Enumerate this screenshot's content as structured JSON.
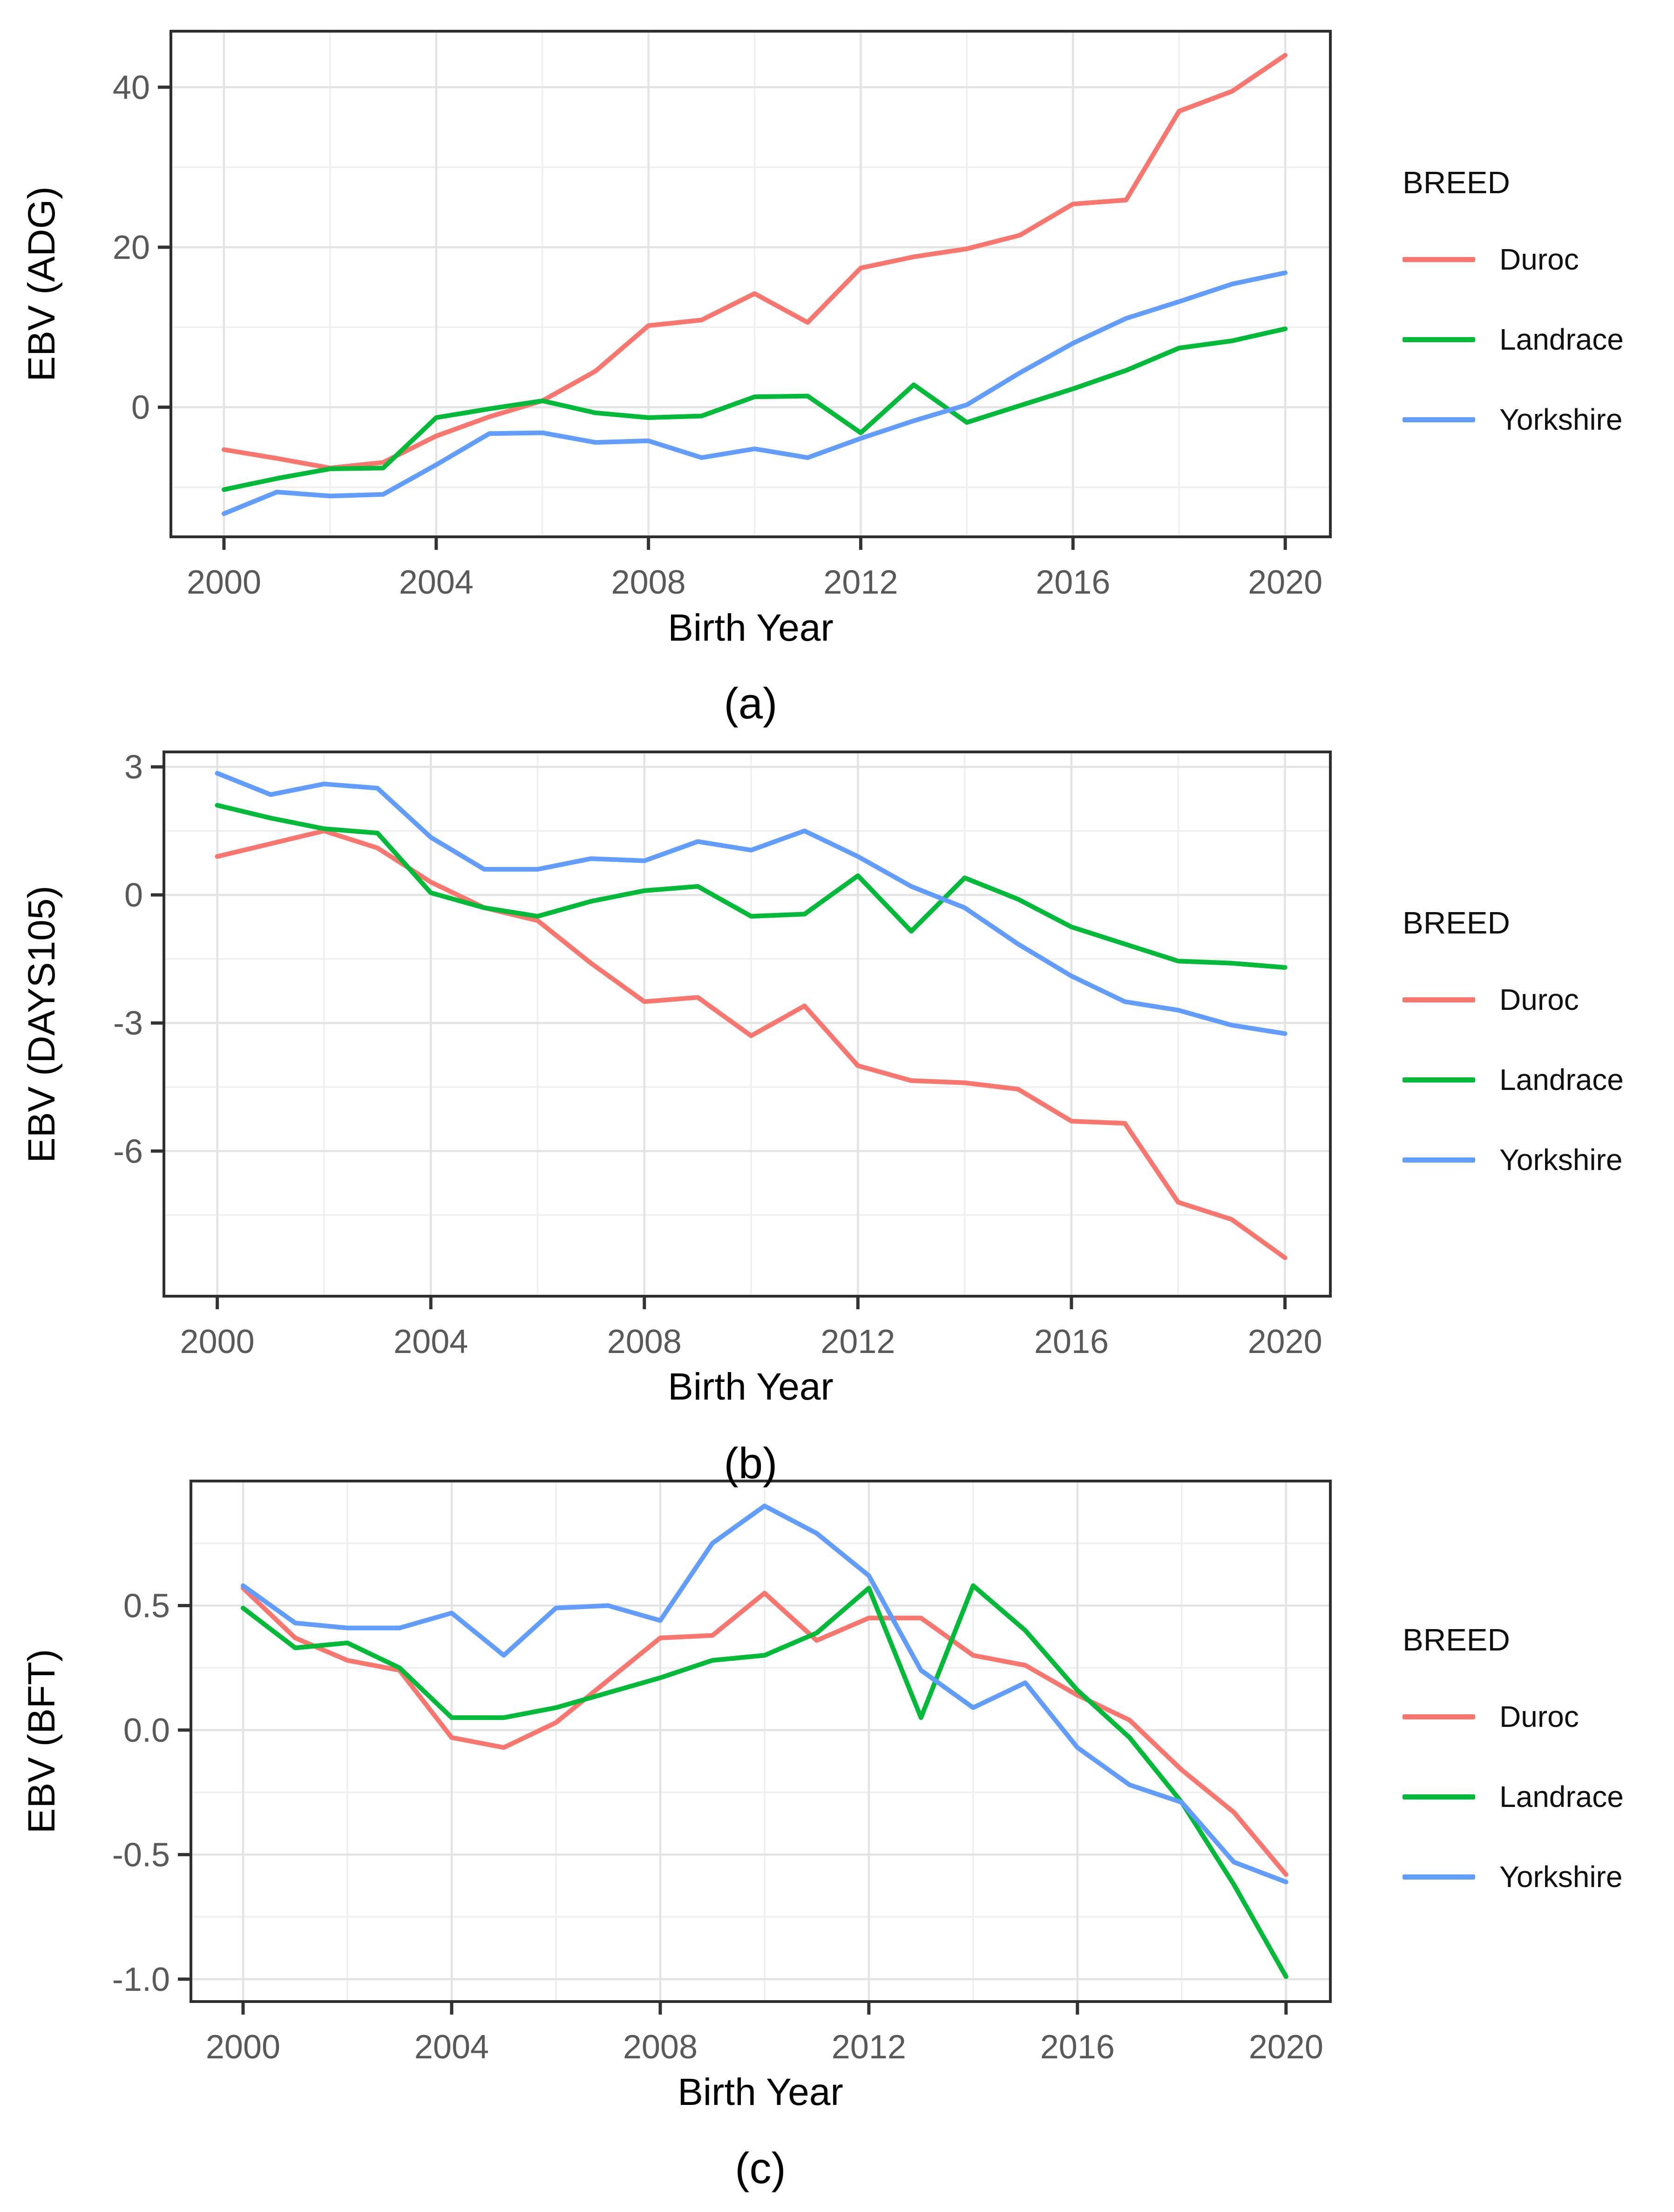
{
  "figure": {
    "background": "#ffffff"
  },
  "legend": {
    "title": "BREED",
    "items": [
      {
        "label": "Duroc",
        "color": "#F8766D"
      },
      {
        "label": "Landrace",
        "color": "#00BA38"
      },
      {
        "label": "Yorkshire",
        "color": "#619CFF"
      }
    ]
  },
  "style": {
    "grid_major_color": "#e3e3e3",
    "grid_minor_color": "#efefef",
    "panel_border_color": "#2f2f2f",
    "tick_color": "#333333",
    "tick_label_color": "#595959",
    "line_width": 10
  },
  "chart_data": [
    {
      "id": "a",
      "type": "line",
      "caption": "(a)",
      "xlabel": "Birth Year",
      "ylabel": "EBV (ADG)",
      "legend_position": "right",
      "grid": true,
      "x": [
        2000,
        2001,
        2002,
        2003,
        2004,
        2005,
        2006,
        2007,
        2008,
        2009,
        2010,
        2011,
        2012,
        2013,
        2014,
        2015,
        2016,
        2017,
        2018,
        2019,
        2020
      ],
      "series": [
        {
          "name": "Duroc",
          "color": "#F8766D",
          "values": [
            -5.3,
            -6.4,
            -7.6,
            -6.9,
            -3.6,
            -1.2,
            0.8,
            4.5,
            10.2,
            10.9,
            14.2,
            10.6,
            17.4,
            18.8,
            19.8,
            21.5,
            25.4,
            25.9,
            37.0,
            39.5,
            44.0
          ]
        },
        {
          "name": "Landrace",
          "color": "#00BA38",
          "values": [
            -10.3,
            -8.9,
            -7.7,
            -7.6,
            -1.3,
            -0.2,
            0.8,
            -0.7,
            -1.3,
            -1.1,
            1.3,
            1.4,
            -3.2,
            2.8,
            -1.9,
            0.2,
            2.3,
            4.6,
            7.4,
            8.3,
            9.8
          ]
        },
        {
          "name": "Yorkshire",
          "color": "#619CFF",
          "values": [
            -13.3,
            -10.6,
            -11.1,
            -10.9,
            -7.2,
            -3.3,
            -3.2,
            -4.4,
            -4.2,
            -6.3,
            -5.2,
            -6.3,
            -3.9,
            -1.7,
            0.3,
            4.3,
            8.0,
            11.1,
            13.2,
            15.4,
            16.8
          ]
        }
      ],
      "xlim": [
        1999.0,
        2020.85
      ],
      "ylim": [
        -16.2,
        47.0
      ],
      "x_ticks": [
        {
          "v": 2000,
          "label": "2000"
        },
        {
          "v": 2004,
          "label": "2004"
        },
        {
          "v": 2008,
          "label": "2008"
        },
        {
          "v": 2012,
          "label": "2012"
        },
        {
          "v": 2016,
          "label": "2016"
        },
        {
          "v": 2020,
          "label": "2020"
        }
      ],
      "x_minor": [
        2002,
        2006,
        2010,
        2014,
        2018
      ],
      "y_ticks": [
        {
          "v": 40,
          "label": "40"
        },
        {
          "v": 20,
          "label": "20"
        },
        {
          "v": 0,
          "label": "0"
        }
      ],
      "y_minor": [
        30,
        10,
        -10
      ]
    },
    {
      "id": "b",
      "type": "line",
      "caption": "(b)",
      "xlabel": "Birth Year",
      "ylabel": "EBV (DAYS105)",
      "legend_position": "right",
      "grid": true,
      "x": [
        2000,
        2001,
        2002,
        2003,
        2004,
        2005,
        2006,
        2007,
        2008,
        2009,
        2010,
        2011,
        2012,
        2013,
        2014,
        2015,
        2016,
        2017,
        2018,
        2019,
        2020
      ],
      "series": [
        {
          "name": "Duroc",
          "color": "#F8766D",
          "values": [
            0.9,
            1.2,
            1.5,
            1.1,
            0.3,
            -0.3,
            -0.6,
            -1.6,
            -2.5,
            -2.4,
            -3.3,
            -2.6,
            -4.0,
            -4.35,
            -4.4,
            -4.55,
            -5.3,
            -5.35,
            -7.2,
            -7.6,
            -8.5
          ]
        },
        {
          "name": "Landrace",
          "color": "#00BA38",
          "values": [
            2.1,
            1.8,
            1.55,
            1.45,
            0.05,
            -0.3,
            -0.5,
            -0.15,
            0.1,
            0.2,
            -0.5,
            -0.45,
            0.45,
            -0.85,
            0.4,
            -0.1,
            -0.75,
            -1.15,
            -1.55,
            -1.6,
            -1.7
          ]
        },
        {
          "name": "Yorkshire",
          "color": "#619CFF",
          "values": [
            2.85,
            2.35,
            2.6,
            2.5,
            1.35,
            0.6,
            0.6,
            0.85,
            0.8,
            1.25,
            1.05,
            1.5,
            0.9,
            0.2,
            -0.3,
            -1.15,
            -1.9,
            -2.5,
            -2.7,
            -3.05,
            -3.25
          ]
        }
      ],
      "xlim": [
        1999.0,
        2020.85
      ],
      "ylim": [
        -9.4,
        3.35
      ],
      "x_ticks": [
        {
          "v": 2000,
          "label": "2000"
        },
        {
          "v": 2004,
          "label": "2004"
        },
        {
          "v": 2008,
          "label": "2008"
        },
        {
          "v": 2012,
          "label": "2012"
        },
        {
          "v": 2016,
          "label": "2016"
        },
        {
          "v": 2020,
          "label": "2020"
        }
      ],
      "x_minor": [
        2002,
        2006,
        2010,
        2014,
        2018
      ],
      "y_ticks": [
        {
          "v": 3,
          "label": "3"
        },
        {
          "v": 0,
          "label": "0"
        },
        {
          "v": -3,
          "label": "-3"
        },
        {
          "v": -6,
          "label": "-6"
        }
      ],
      "y_minor": [
        1.5,
        -1.5,
        -4.5,
        -7.5
      ]
    },
    {
      "id": "c",
      "type": "line",
      "caption": "(c)",
      "xlabel": "Birth Year",
      "ylabel": "EBV (BFT)",
      "legend_position": "right",
      "grid": true,
      "x": [
        2000,
        2001,
        2002,
        2003,
        2004,
        2005,
        2006,
        2007,
        2008,
        2009,
        2010,
        2011,
        2012,
        2013,
        2014,
        2015,
        2016,
        2017,
        2018,
        2019,
        2020
      ],
      "series": [
        {
          "name": "Duroc",
          "color": "#F8766D",
          "values": [
            0.57,
            0.37,
            0.28,
            0.24,
            -0.03,
            -0.07,
            0.03,
            0.2,
            0.37,
            0.38,
            0.55,
            0.36,
            0.45,
            0.45,
            0.3,
            0.26,
            0.14,
            0.04,
            -0.16,
            -0.33,
            -0.58
          ]
        },
        {
          "name": "Landrace",
          "color": "#00BA38",
          "values": [
            0.49,
            0.33,
            0.35,
            0.25,
            0.05,
            0.05,
            0.09,
            0.15,
            0.21,
            0.28,
            0.3,
            0.39,
            0.57,
            0.05,
            0.58,
            0.4,
            0.16,
            -0.03,
            -0.29,
            -0.62,
            -0.99
          ]
        },
        {
          "name": "Yorkshire",
          "color": "#619CFF",
          "values": [
            0.58,
            0.43,
            0.41,
            0.41,
            0.47,
            0.3,
            0.49,
            0.5,
            0.44,
            0.75,
            0.9,
            0.79,
            0.62,
            0.24,
            0.09,
            0.19,
            -0.07,
            -0.22,
            -0.29,
            -0.53,
            -0.61
          ]
        }
      ],
      "xlim": [
        1999.0,
        2020.85
      ],
      "ylim": [
        -1.09,
        1.0
      ],
      "x_ticks": [
        {
          "v": 2000,
          "label": "2000"
        },
        {
          "v": 2004,
          "label": "2004"
        },
        {
          "v": 2008,
          "label": "2008"
        },
        {
          "v": 2012,
          "label": "2012"
        },
        {
          "v": 2016,
          "label": "2016"
        },
        {
          "v": 2020,
          "label": "2020"
        }
      ],
      "x_minor": [
        2002,
        2006,
        2010,
        2014,
        2018
      ],
      "y_ticks": [
        {
          "v": 0.5,
          "label": "0.5"
        },
        {
          "v": 0.0,
          "label": "0.0"
        },
        {
          "v": -0.5,
          "label": "-0.5"
        },
        {
          "v": -1.0,
          "label": "-1.0"
        }
      ],
      "y_minor": [
        0.75,
        0.25,
        -0.25,
        -0.75
      ]
    }
  ]
}
